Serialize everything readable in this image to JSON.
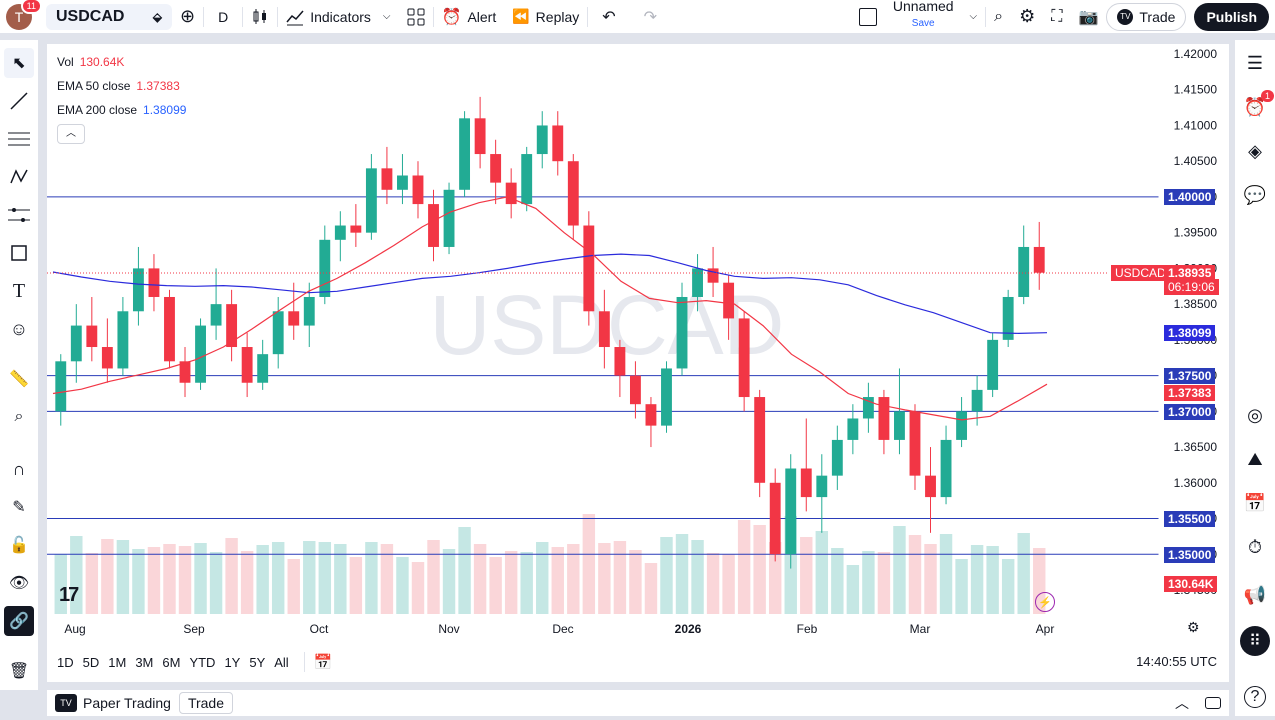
{
  "topbar": {
    "avatar_letter": "T",
    "notif_count": "11",
    "symbol": "USDCAD",
    "interval": "D",
    "indicators_label": "Indicators",
    "alert_label": "Alert",
    "replay_label": "Replay",
    "layout_name": "Unnamed",
    "layout_save": "Save",
    "trade_label": "Trade",
    "publish_label": "Publish"
  },
  "legend": {
    "vol_label": "Vol",
    "vol_value": "130.64K",
    "ema50_label": "EMA 50 close",
    "ema50_value": "1.37383",
    "ema200_label": "EMA 200 close",
    "ema200_value": "1.38099"
  },
  "watermark": "USDCAD",
  "price_axis": [
    "1.42000",
    "1.41500",
    "1.41000",
    "1.40500",
    "1.40000",
    "1.39500",
    "1.39000",
    "1.38500",
    "1.38000",
    "1.37500",
    "1.37000",
    "1.36500",
    "1.36000",
    "1.35500",
    "1.35000",
    "1.34500"
  ],
  "time_axis": [
    "Aug",
    "Sep",
    "Oct",
    "Nov",
    "Dec",
    "2026",
    "Feb",
    "Mar",
    "Apr"
  ],
  "price_labels": {
    "l1400": "1.40000",
    "symbol_tag": "USDCAD",
    "last": "1.38935",
    "countdown": "06:19:06",
    "ema200": "1.38099",
    "l1375": "1.37500",
    "ema50": "1.37383",
    "l1370": "1.37000",
    "l1355": "1.35500",
    "l1350": "1.35000",
    "vol": "130.64K"
  },
  "ranges": [
    "1D",
    "5D",
    "1M",
    "3M",
    "6M",
    "YTD",
    "1Y",
    "5Y",
    "All"
  ],
  "clock": "14:40:55 UTC",
  "bottom": {
    "paper_trading": "Paper Trading",
    "trade": "Trade"
  },
  "alerts_badge": "1",
  "colors": {
    "up": "#22ab94",
    "down": "#f23645",
    "ema50": "#f23645",
    "ema200": "#2b2bdc",
    "hline": "#2a3cb8"
  },
  "chart_data": {
    "type": "candlestick",
    "symbol": "USDCAD",
    "interval": "D",
    "hlines": [
      1.4,
      1.375,
      1.37,
      1.355,
      1.35
    ],
    "ylim": [
      1.344,
      1.422
    ],
    "last_price": 1.38935,
    "ema50_last": 1.37383,
    "ema200_last": 1.38099,
    "volume_last": "130.64K",
    "ema200_series": [
      1.3895,
      1.3888,
      1.3882,
      1.3878,
      1.3876,
      1.3875,
      1.3876,
      1.3874,
      1.387,
      1.3866,
      1.3868,
      1.3874,
      1.388,
      1.3886,
      1.3889,
      1.3894,
      1.39,
      1.3907,
      1.3913,
      1.3918,
      1.392,
      1.3918,
      1.3908,
      1.3897,
      1.3889,
      1.3886,
      1.3887,
      1.3884,
      1.3877,
      1.3862,
      1.3849,
      1.3838,
      1.3824,
      1.381,
      1.3809,
      1.381
    ],
    "ema50_series": [
      1.3725,
      1.3731,
      1.3742,
      1.3751,
      1.376,
      1.3772,
      1.379,
      1.3815,
      1.3842,
      1.3868,
      1.3886,
      1.3908,
      1.3932,
      1.3958,
      1.3979,
      1.3992,
      1.4,
      1.3984,
      1.395,
      1.392,
      1.3882,
      1.3858,
      1.3852,
      1.3855,
      1.385,
      1.382,
      1.378,
      1.3755,
      1.3725,
      1.371,
      1.3702,
      1.3695,
      1.3688,
      1.3693,
      1.3715,
      1.3738
    ],
    "candles": [
      [
        1.37,
        1.378,
        1.368,
        1.377
      ],
      [
        1.377,
        1.385,
        1.374,
        1.382
      ],
      [
        1.382,
        1.386,
        1.377,
        1.379
      ],
      [
        1.379,
        1.383,
        1.374,
        1.376
      ],
      [
        1.376,
        1.386,
        1.375,
        1.384
      ],
      [
        1.384,
        1.393,
        1.382,
        1.39
      ],
      [
        1.39,
        1.392,
        1.384,
        1.386
      ],
      [
        1.386,
        1.387,
        1.376,
        1.377
      ],
      [
        1.377,
        1.379,
        1.372,
        1.374
      ],
      [
        1.374,
        1.383,
        1.373,
        1.382
      ],
      [
        1.382,
        1.39,
        1.38,
        1.385
      ],
      [
        1.385,
        1.387,
        1.377,
        1.379
      ],
      [
        1.379,
        1.381,
        1.372,
        1.374
      ],
      [
        1.374,
        1.38,
        1.373,
        1.378
      ],
      [
        1.378,
        1.386,
        1.376,
        1.384
      ],
      [
        1.384,
        1.388,
        1.38,
        1.382
      ],
      [
        1.382,
        1.388,
        1.379,
        1.386
      ],
      [
        1.386,
        1.396,
        1.385,
        1.394
      ],
      [
        1.394,
        1.398,
        1.391,
        1.396
      ],
      [
        1.396,
        1.399,
        1.393,
        1.395
      ],
      [
        1.395,
        1.406,
        1.394,
        1.404
      ],
      [
        1.404,
        1.407,
        1.399,
        1.401
      ],
      [
        1.401,
        1.406,
        1.399,
        1.403
      ],
      [
        1.403,
        1.405,
        1.397,
        1.399
      ],
      [
        1.399,
        1.401,
        1.391,
        1.393
      ],
      [
        1.393,
        1.402,
        1.392,
        1.401
      ],
      [
        1.401,
        1.412,
        1.4,
        1.411
      ],
      [
        1.411,
        1.414,
        1.404,
        1.406
      ],
      [
        1.406,
        1.408,
        1.399,
        1.402
      ],
      [
        1.402,
        1.404,
        1.397,
        1.399
      ],
      [
        1.399,
        1.407,
        1.398,
        1.406
      ],
      [
        1.406,
        1.412,
        1.404,
        1.41
      ],
      [
        1.41,
        1.412,
        1.403,
        1.405
      ],
      [
        1.405,
        1.406,
        1.394,
        1.396
      ],
      [
        1.396,
        1.398,
        1.382,
        1.384
      ],
      [
        1.384,
        1.387,
        1.376,
        1.379
      ],
      [
        1.379,
        1.38,
        1.372,
        1.375
      ],
      [
        1.375,
        1.377,
        1.369,
        1.371
      ],
      [
        1.371,
        1.372,
        1.365,
        1.368
      ],
      [
        1.368,
        1.377,
        1.367,
        1.376
      ],
      [
        1.376,
        1.388,
        1.375,
        1.386
      ],
      [
        1.386,
        1.392,
        1.384,
        1.39
      ],
      [
        1.39,
        1.393,
        1.386,
        1.388
      ],
      [
        1.388,
        1.389,
        1.38,
        1.383
      ],
      [
        1.383,
        1.384,
        1.37,
        1.372
      ],
      [
        1.372,
        1.373,
        1.358,
        1.36
      ],
      [
        1.36,
        1.362,
        1.349,
        1.35
      ],
      [
        1.35,
        1.364,
        1.348,
        1.362
      ],
      [
        1.362,
        1.369,
        1.356,
        1.358
      ],
      [
        1.358,
        1.364,
        1.353,
        1.361
      ],
      [
        1.361,
        1.368,
        1.359,
        1.366
      ],
      [
        1.366,
        1.371,
        1.364,
        1.369
      ],
      [
        1.369,
        1.374,
        1.367,
        1.372
      ],
      [
        1.372,
        1.373,
        1.364,
        1.366
      ],
      [
        1.366,
        1.376,
        1.364,
        1.37
      ],
      [
        1.37,
        1.371,
        1.359,
        1.361
      ],
      [
        1.361,
        1.365,
        1.353,
        1.358
      ],
      [
        1.358,
        1.368,
        1.357,
        1.366
      ],
      [
        1.366,
        1.372,
        1.365,
        1.37
      ],
      [
        1.37,
        1.375,
        1.368,
        1.373
      ],
      [
        1.373,
        1.381,
        1.372,
        1.38
      ],
      [
        1.38,
        1.387,
        1.379,
        1.386
      ],
      [
        1.386,
        1.396,
        1.385,
        1.393
      ],
      [
        1.393,
        1.3965,
        1.387,
        1.3894
      ]
    ]
  }
}
